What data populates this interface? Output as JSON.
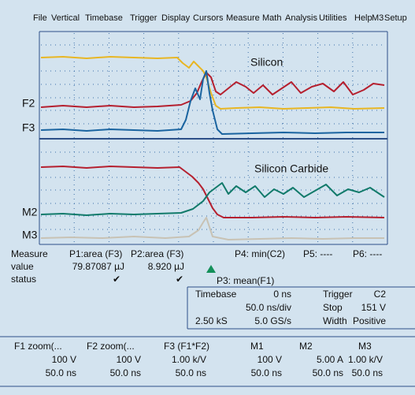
{
  "menu": [
    "File",
    "Vertical",
    "Timebase",
    "Trigger",
    "Display",
    "Cursors",
    "Measure",
    "Math",
    "Analysis",
    "Utilities",
    "Help",
    "M3",
    "Setup"
  ],
  "top_panel": {
    "annotation": "Silicon",
    "trace_labels": [
      "F2",
      "F3"
    ]
  },
  "bottom_panel": {
    "annotation": "Silicon Carbide",
    "trace_labels": [
      "M2",
      "M3"
    ]
  },
  "measure": {
    "row_labels": [
      "Measure",
      "value",
      "status"
    ],
    "params": [
      {
        "name": "P1:area (F3)",
        "value": "79.87087 µJ",
        "status": "✔"
      },
      {
        "name": "P2:area (F3)",
        "value": "8.920 µJ",
        "status": "✔"
      },
      {
        "name": "P3: mean(F1)"
      },
      {
        "name": "P4: min(C2)"
      },
      {
        "name": "P5: ----"
      },
      {
        "name": "P6: ----"
      }
    ]
  },
  "timebase": {
    "label": "Timebase",
    "delay": "0 ns",
    "scale": "50.0 ns/div",
    "samples": "2.50 kS",
    "rate": "5.0 GS/s"
  },
  "trigger": {
    "label": "Trigger",
    "source": "C2",
    "mode": "Stop",
    "level": "151 V",
    "type": "Width",
    "polarity": "Positive"
  },
  "channels": [
    {
      "name": "F1 zoom(...",
      "scale": "100 V",
      "time": "50.0 ns"
    },
    {
      "name": "F2 zoom(...",
      "scale": "100 V",
      "time": "50.0 ns"
    },
    {
      "name": "F3  (F1*F2)",
      "scale": "1.00 k/V",
      "time": "50.0 ns"
    },
    {
      "name": "M1",
      "scale": "100 V",
      "time": "50.0 ns"
    },
    {
      "name": "M2",
      "scale": "5.00 A",
      "time": "50.0 ns"
    },
    {
      "name": "M3",
      "scale": "1.00 k/V",
      "time": "50.0 ns"
    }
  ]
}
